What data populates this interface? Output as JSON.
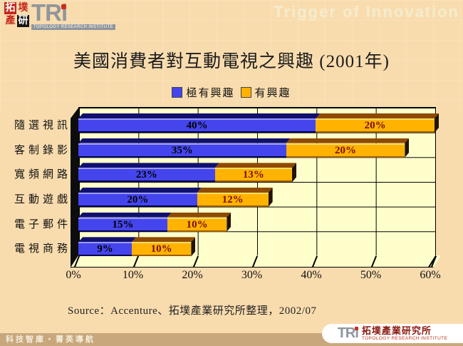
{
  "header": {
    "tagline": "Trigger of Innovation",
    "logo": {
      "block_chars": [
        "拓",
        "墣",
        "產",
        "研"
      ],
      "tri": "TRi",
      "institute_en": "TOPOLOGY RESEARCH INSTITUTE"
    }
  },
  "title": "美國消費者對互動電視之興趣 (2001年)",
  "chart_data": {
    "type": "bar",
    "orientation": "horizontal",
    "stacked": true,
    "title": "美國消費者對互動電視之興趣 (2001年)",
    "categories": [
      "隨選視訊",
      "客制錄影",
      "寬頻網路",
      "互動遊戲",
      "電子郵件",
      "電視商務"
    ],
    "series": [
      {
        "name": "極有興趣",
        "values": [
          40,
          35,
          23,
          20,
          15,
          9
        ],
        "color": "#4545ee",
        "highlight_color": "#9b9bff",
        "shadow_color": "#00004d",
        "top_color": "#10106e",
        "side_color": "#05053a",
        "label_color": "#000000"
      },
      {
        "name": "有興趣",
        "values": [
          20,
          20,
          13,
          12,
          10,
          10
        ],
        "color": "#ffb300",
        "highlight_color": "#ffdd66",
        "shadow_color": "#a05c00",
        "top_color": "#8f4a00",
        "side_color": "#221200",
        "label_color": "#7a0b0b"
      }
    ],
    "x_ticks": [
      "0%",
      "10%",
      "20%",
      "30%",
      "40%",
      "50%",
      "60%"
    ],
    "xlim": [
      0,
      60
    ],
    "grid": true,
    "legend_position": "top"
  },
  "source": "Source：Accenture、拓墣產業研究所整理，2002/07",
  "footer": {
    "tagline": "科技智庫‧菁英導航",
    "logo": {
      "tri": "TRi",
      "institute_zh": "拓墣產業研究所",
      "institute_en": "TOPOLOGY RESEARCH INSTITUTE"
    }
  },
  "colors": {
    "page_bg": "#f9dcae",
    "plot_bg": "#ffffcc",
    "footer_strip": "#c7a77b",
    "logo_red": "#c4271d",
    "tri_gray": "#8f969c"
  }
}
